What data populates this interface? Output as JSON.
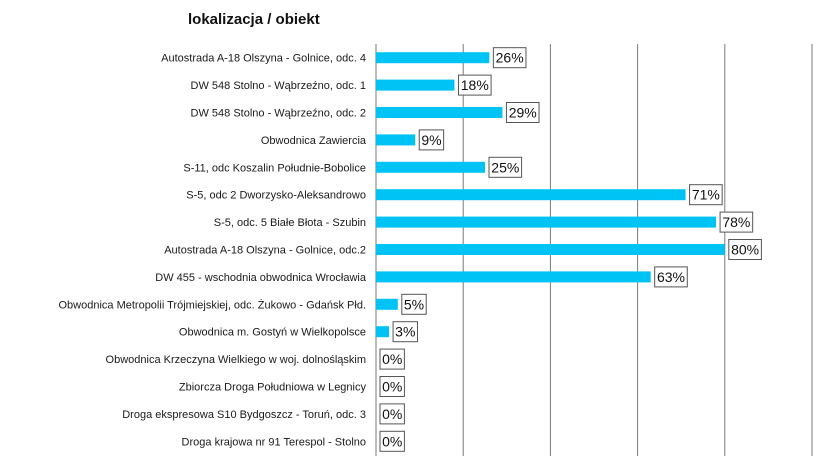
{
  "chart_data": {
    "type": "bar",
    "orientation": "horizontal",
    "title": "lokalizacja / obiekt",
    "xlabel": "",
    "ylabel": "",
    "xlim": [
      0,
      100
    ],
    "grid": true,
    "legend": "none",
    "bar_color": "#00c3f5",
    "categories": [
      "Autostrada A-18 Olszyna - Golnice, odc. 4",
      "DW 548 Stolno - Wąbrzeźno, odc. 1",
      "DW 548 Stolno - Wąbrzeźno, odc. 2",
      "Obwodnica Zawiercia",
      "S-11, odc Koszalin Południe-Bobolice",
      "S-5, odc 2 Dworzysko-Aleksandrowo",
      "S-5, odc. 5 Białe Błota - Szubin",
      "Autostrada A-18 Olszyna - Golnice, odc.2",
      "DW 455 - wschodnia obwodnica Wrocławia",
      "Obwodnica Metropolii Trójmiejskiej, odc. Żukowo - Gdańsk Płd.",
      "Obwodnica m. Gostyń w Wielkopolsce",
      "Obwodnica  Krzeczyna Wielkiego w woj. dolnośląskim",
      "Zbiorcza Droga Południowa w Legnicy",
      "Droga ekspresowa S10 Bydgoszcz - Toruń, odc. 3",
      "Droga krajowa nr 91 Terespol - Stolno"
    ],
    "values": [
      26,
      18,
      29,
      9,
      25,
      71,
      78,
      80,
      63,
      5,
      3,
      0,
      0,
      0,
      0
    ],
    "data_labels": [
      "26%",
      "18%",
      "29%",
      "9%",
      "25%",
      "71%",
      "78%",
      "80%",
      "63%",
      "5%",
      "3%",
      "0%",
      "0%",
      "0%",
      "0%"
    ]
  }
}
